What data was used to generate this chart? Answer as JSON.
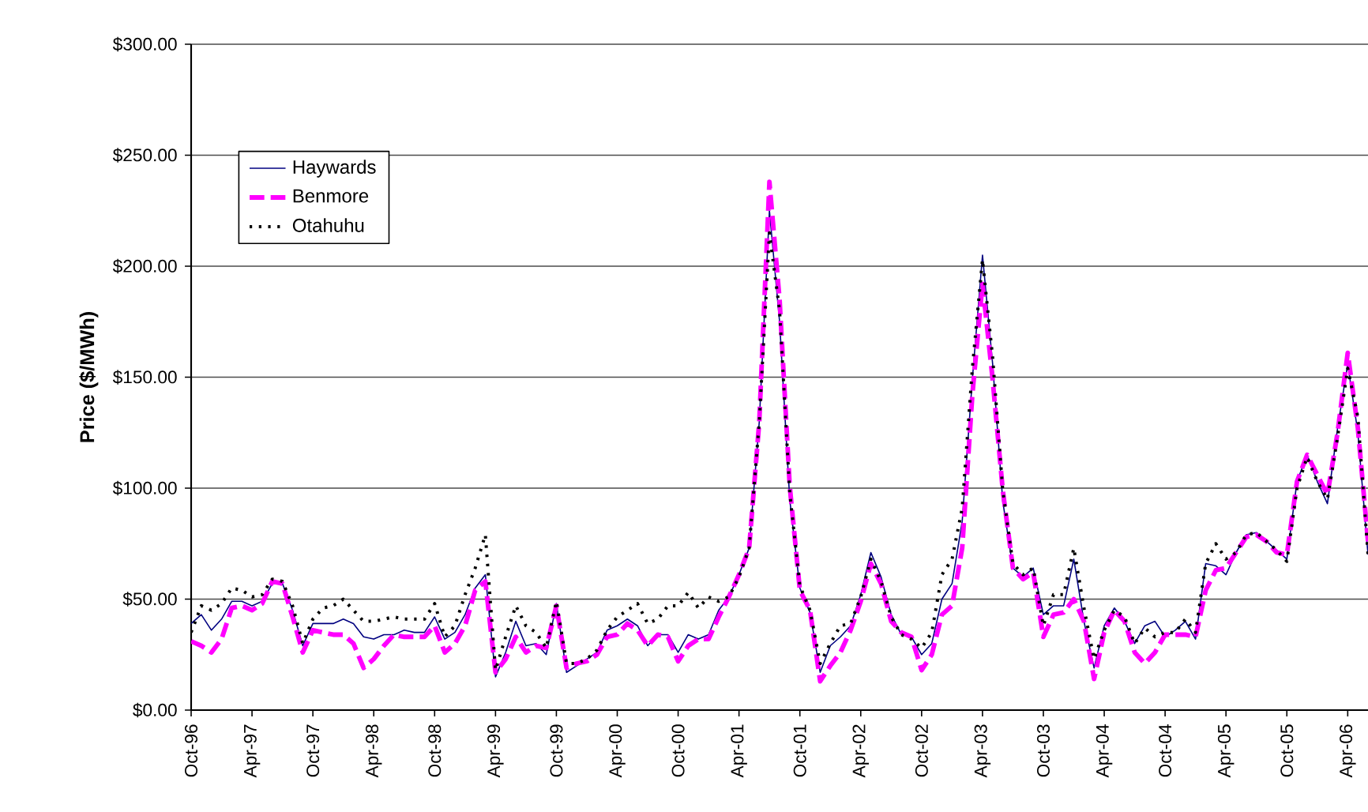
{
  "chart_data": {
    "type": "line",
    "ylabel": "Price ($/MWh)",
    "x": [
      "1996-10",
      "1996-11",
      "1996-12",
      "1997-01",
      "1997-02",
      "1997-03",
      "1997-04",
      "1997-05",
      "1997-06",
      "1997-07",
      "1997-08",
      "1997-09",
      "1997-10",
      "1997-11",
      "1997-12",
      "1998-01",
      "1998-02",
      "1998-03",
      "1998-04",
      "1998-05",
      "1998-06",
      "1998-07",
      "1998-08",
      "1998-09",
      "1998-10",
      "1998-11",
      "1998-12",
      "1999-01",
      "1999-02",
      "1999-03",
      "1999-04",
      "1999-05",
      "1999-06",
      "1999-07",
      "1999-08",
      "1999-09",
      "1999-10",
      "1999-11",
      "1999-12",
      "2000-01",
      "2000-02",
      "2000-03",
      "2000-04",
      "2000-05",
      "2000-06",
      "2000-07",
      "2000-08",
      "2000-09",
      "2000-10",
      "2000-11",
      "2000-12",
      "2001-01",
      "2001-02",
      "2001-03",
      "2001-04",
      "2001-05",
      "2001-06",
      "2001-07",
      "2001-08",
      "2001-09",
      "2001-10",
      "2001-11",
      "2001-12",
      "2002-01",
      "2002-02",
      "2002-03",
      "2002-04",
      "2002-05",
      "2002-06",
      "2002-07",
      "2002-08",
      "2002-09",
      "2002-10",
      "2002-11",
      "2002-12",
      "2003-01",
      "2003-02",
      "2003-03",
      "2003-04",
      "2003-05",
      "2003-06",
      "2003-07",
      "2003-08",
      "2003-09",
      "2003-10",
      "2003-11",
      "2003-12",
      "2004-01",
      "2004-02",
      "2004-03",
      "2004-04",
      "2004-05",
      "2004-06",
      "2004-07",
      "2004-08",
      "2004-09",
      "2004-10",
      "2004-11",
      "2004-12",
      "2005-01",
      "2005-02",
      "2005-03",
      "2005-04",
      "2005-05",
      "2005-06",
      "2005-07",
      "2005-08",
      "2005-09",
      "2005-10",
      "2005-11",
      "2005-12",
      "2006-01",
      "2006-02",
      "2006-03",
      "2006-04",
      "2006-05",
      "2006-06"
    ],
    "series": [
      {
        "name": "Haywards",
        "color": "#000080",
        "line_style": "solid",
        "values": [
          39,
          43,
          36,
          41,
          49,
          49,
          47,
          49,
          57,
          57,
          45,
          29,
          39,
          39,
          39,
          41,
          39,
          33,
          32,
          34,
          34,
          36,
          35,
          35,
          42,
          32,
          35,
          43,
          55,
          61,
          15,
          26,
          40,
          29,
          30,
          25,
          48,
          17,
          20,
          23,
          26,
          36,
          38,
          41,
          38,
          29,
          34,
          34,
          26,
          34,
          32,
          34,
          45,
          51,
          61,
          73,
          130,
          225,
          175,
          95,
          55,
          44,
          17,
          29,
          33,
          38,
          52,
          71,
          60,
          43,
          34,
          33,
          25,
          30,
          50,
          57,
          85,
          149,
          205,
          156,
          94,
          64,
          60,
          64,
          43,
          47,
          47,
          68,
          40,
          19,
          38,
          46,
          40,
          30,
          38,
          40,
          33,
          36,
          40,
          32,
          66,
          65,
          61,
          71,
          79,
          80,
          76,
          72,
          68,
          103,
          115,
          103,
          93,
          127,
          156,
          125,
          70
        ]
      },
      {
        "name": "Benmore",
        "color": "#ff00ff",
        "line_style": "dashed",
        "values": [
          31,
          29,
          26,
          32,
          46,
          47,
          45,
          48,
          58,
          57,
          42,
          26,
          36,
          35,
          34,
          34,
          30,
          19,
          23,
          29,
          34,
          33,
          33,
          33,
          38,
          26,
          30,
          38,
          54,
          58,
          17,
          23,
          33,
          26,
          29,
          28,
          47,
          19,
          21,
          22,
          25,
          33,
          34,
          39,
          36,
          29,
          34,
          33,
          22,
          29,
          32,
          32,
          42,
          51,
          61,
          73,
          130,
          238,
          185,
          101,
          54,
          45,
          13,
          20,
          26,
          36,
          49,
          66,
          57,
          40,
          35,
          33,
          18,
          25,
          43,
          47,
          73,
          142,
          192,
          149,
          99,
          64,
          59,
          62,
          33,
          43,
          44,
          50,
          40,
          14,
          35,
          45,
          40,
          26,
          21,
          26,
          34,
          34,
          34,
          33,
          54,
          63,
          64,
          71,
          78,
          79,
          76,
          71,
          70,
          103,
          115,
          106,
          97,
          125,
          161,
          127,
          76
        ]
      },
      {
        "name": "Otahuhu",
        "color": "#000000",
        "line_style": "dotted",
        "values": [
          35,
          47,
          45,
          48,
          55,
          54,
          51,
          52,
          59,
          58,
          47,
          30,
          41,
          46,
          47,
          50,
          45,
          40,
          40,
          41,
          42,
          41,
          41,
          41,
          48,
          33,
          38,
          52,
          64,
          79,
          18,
          33,
          47,
          38,
          35,
          28,
          49,
          21,
          21,
          23,
          27,
          36,
          42,
          45,
          48,
          39,
          41,
          47,
          47,
          53,
          46,
          51,
          49,
          51,
          60,
          73,
          130,
          215,
          180,
          98,
          56,
          45,
          21,
          30,
          38,
          39,
          51,
          68,
          58,
          42,
          34,
          32,
          28,
          35,
          61,
          68,
          91,
          154,
          203,
          159,
          99,
          66,
          61,
          64,
          38,
          52,
          52,
          73,
          46,
          23,
          36,
          45,
          42,
          30,
          37,
          33,
          35,
          35,
          41,
          35,
          66,
          75,
          68,
          71,
          79,
          80,
          76,
          72,
          67,
          100,
          114,
          103,
          95,
          123,
          154,
          132,
          70
        ]
      }
    ],
    "xlim": [
      "1996-10",
      "2006-06"
    ],
    "xticks": [
      {
        "value": "1996-10",
        "label": "Oct-96"
      },
      {
        "value": "1997-04",
        "label": "Apr-97"
      },
      {
        "value": "1997-10",
        "label": "Oct-97"
      },
      {
        "value": "1998-04",
        "label": "Apr-98"
      },
      {
        "value": "1998-10",
        "label": "Oct-98"
      },
      {
        "value": "1999-04",
        "label": "Apr-99"
      },
      {
        "value": "1999-10",
        "label": "Oct-99"
      },
      {
        "value": "2000-04",
        "label": "Apr-00"
      },
      {
        "value": "2000-10",
        "label": "Oct-00"
      },
      {
        "value": "2001-04",
        "label": "Apr-01"
      },
      {
        "value": "2001-10",
        "label": "Oct-01"
      },
      {
        "value": "2002-04",
        "label": "Apr-02"
      },
      {
        "value": "2002-10",
        "label": "Oct-02"
      },
      {
        "value": "2003-04",
        "label": "Apr-03"
      },
      {
        "value": "2003-10",
        "label": "Oct-03"
      },
      {
        "value": "2004-04",
        "label": "Apr-04"
      },
      {
        "value": "2004-10",
        "label": "Oct-04"
      },
      {
        "value": "2005-04",
        "label": "Apr-05"
      },
      {
        "value": "2005-10",
        "label": "Oct-05"
      },
      {
        "value": "2006-04",
        "label": "Apr-06"
      }
    ],
    "ylim": [
      0,
      300
    ],
    "yticks": [
      {
        "value": 0,
        "label": "$0.00"
      },
      {
        "value": 50,
        "label": "$50.00"
      },
      {
        "value": 100,
        "label": "$100.00"
      },
      {
        "value": 150,
        "label": "$150.00"
      },
      {
        "value": 200,
        "label": "$200.00"
      },
      {
        "value": 250,
        "label": "$250.00"
      },
      {
        "value": 300,
        "label": "$300.00"
      }
    ],
    "grid": "y",
    "legend": "top left"
  }
}
